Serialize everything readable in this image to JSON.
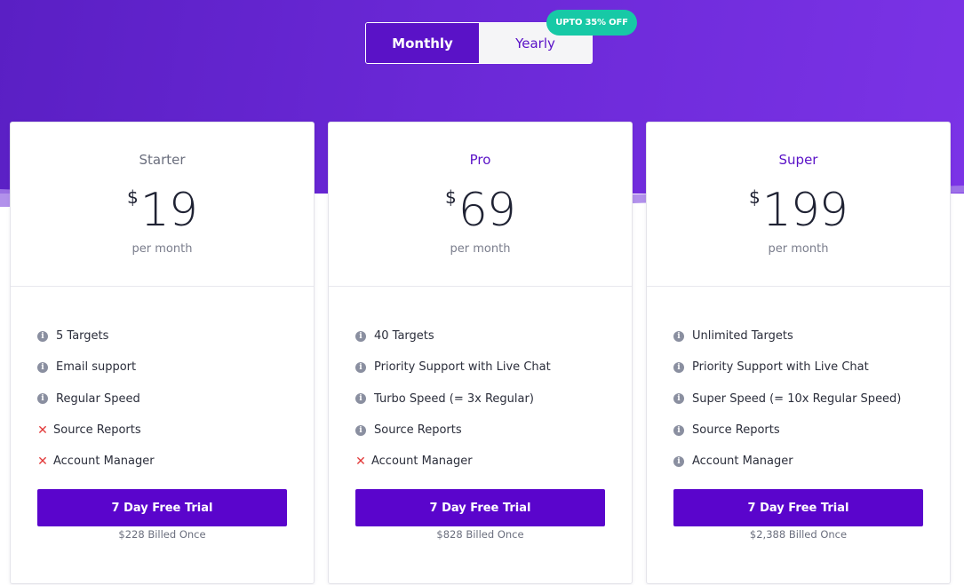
{
  "toggle": {
    "monthly_label": "Monthly",
    "yearly_label": "Yearly",
    "active": "Monthly",
    "badge": "UPTO 35% OFF"
  },
  "colors": {
    "hero_start": "#5a1fc4",
    "hero_end": "#7b33e6",
    "accent": "#5a12c7",
    "badge": "#17c9a6",
    "cross": "#e23a3a"
  },
  "plans": [
    {
      "name": "Starter",
      "currency": "$",
      "price": "19",
      "period": "per month",
      "features": [
        {
          "text": "5 Targets",
          "included": true,
          "icon": "info-icon"
        },
        {
          "text": "Email support",
          "included": true,
          "icon": "info-icon"
        },
        {
          "text": "Regular Speed",
          "included": true,
          "icon": "info-icon"
        },
        {
          "text": "Source Reports",
          "included": false,
          "icon": "cross-icon"
        },
        {
          "text": "Account Manager",
          "included": false,
          "icon": "cross-icon"
        }
      ],
      "cta": "7 Day Free Trial",
      "billed": "$228 Billed Once"
    },
    {
      "name": "Pro",
      "currency": "$",
      "price": "69",
      "period": "per month",
      "features": [
        {
          "text": "40 Targets",
          "included": true,
          "icon": "info-icon"
        },
        {
          "text": "Priority Support with Live Chat",
          "included": true,
          "icon": "info-icon"
        },
        {
          "text": "Turbo Speed (= 3x Regular)",
          "included": true,
          "icon": "info-icon"
        },
        {
          "text": "Source Reports",
          "included": true,
          "icon": "info-icon"
        },
        {
          "text": "Account Manager",
          "included": false,
          "icon": "cross-icon"
        }
      ],
      "cta": "7 Day Free Trial",
      "billed": "$828 Billed Once"
    },
    {
      "name": "Super",
      "currency": "$",
      "price": "199",
      "period": "per month",
      "features": [
        {
          "text": "Unlimited Targets",
          "included": true,
          "icon": "info-icon"
        },
        {
          "text": "Priority Support with Live Chat",
          "included": true,
          "icon": "info-icon"
        },
        {
          "text": "Super Speed (= 10x Regular Speed)",
          "included": true,
          "icon": "info-icon"
        },
        {
          "text": "Source Reports",
          "included": true,
          "icon": "info-icon"
        },
        {
          "text": "Account Manager",
          "included": true,
          "icon": "info-icon"
        }
      ],
      "cta": "7 Day Free Trial",
      "billed": "$2,388 Billed Once"
    }
  ]
}
